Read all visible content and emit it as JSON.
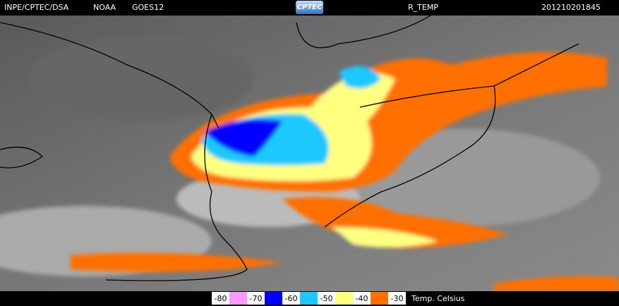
{
  "header": {
    "source": "INPE/CPTEC/DSA",
    "agency": "NOAA",
    "satellite": "GOES12",
    "logo": "CPTEC",
    "product": "R_TEMP",
    "timestamp": "201210201845"
  },
  "legend": {
    "labels": [
      -80,
      -70,
      -60,
      -50,
      -40,
      -30
    ],
    "colors": [
      "#ff99ff",
      "#0000ff",
      "#1ec8ff",
      "#ffff80",
      "#ff7000"
    ],
    "unit": "Temp. Celsius"
  }
}
